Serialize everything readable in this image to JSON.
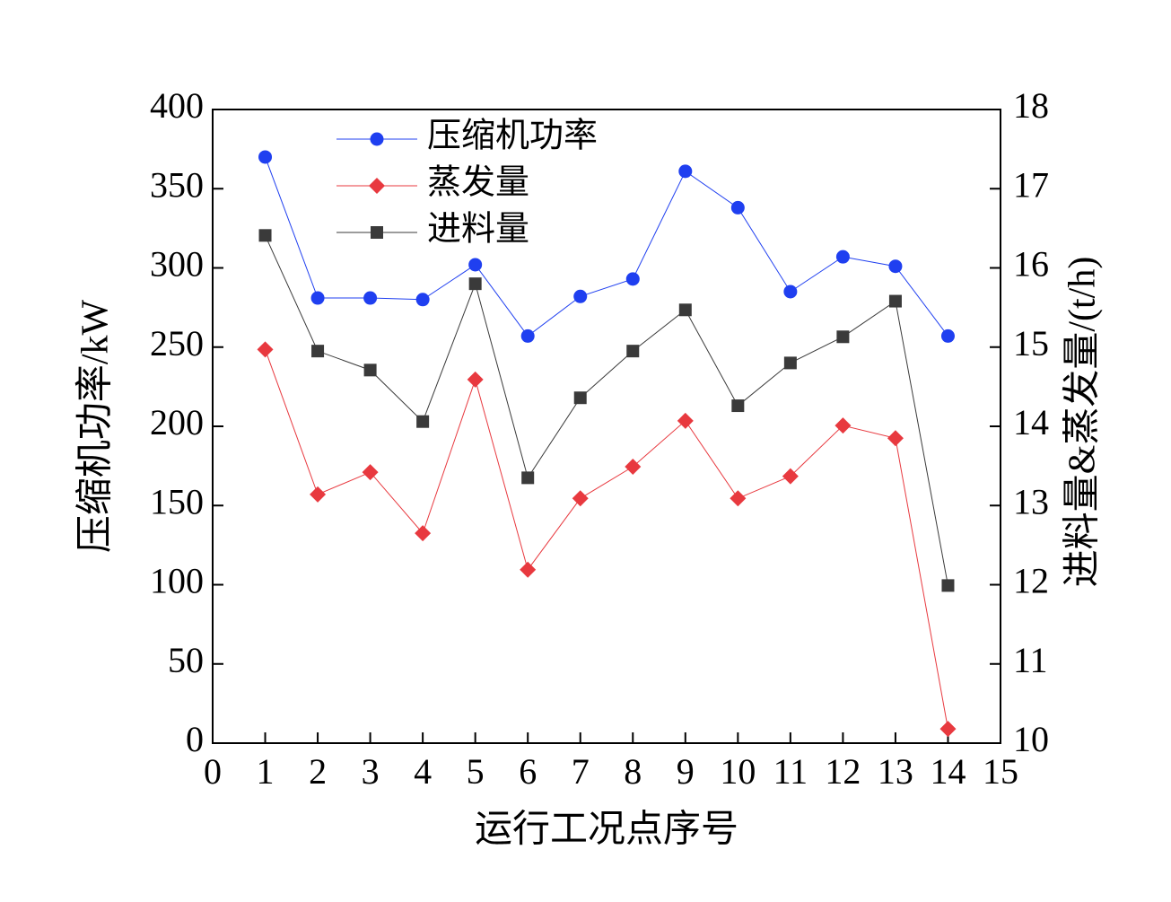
{
  "chart_data": {
    "type": "line",
    "x_label": "运行工况点序号",
    "y_label": "压缩机功率/kW",
    "y2_label": "进料量&蒸发量/(t/h)",
    "x": [
      1,
      2,
      3,
      4,
      5,
      6,
      7,
      8,
      9,
      10,
      11,
      12,
      13,
      14
    ],
    "xlim": [
      0,
      15
    ],
    "xticks": [
      0,
      1,
      2,
      3,
      4,
      5,
      6,
      7,
      8,
      9,
      10,
      11,
      12,
      13,
      14,
      15
    ],
    "ylim": [
      0,
      400
    ],
    "yticks": [
      0,
      50,
      100,
      150,
      200,
      250,
      300,
      350,
      400
    ],
    "y2lim": [
      10,
      18
    ],
    "y2ticks": [
      10,
      11,
      12,
      13,
      14,
      15,
      16,
      17,
      18
    ],
    "legend": "top-left",
    "series": [
      {
        "name": "压缩机功率",
        "color": "#1f3ff0",
        "marker": "circle",
        "values": [
          370,
          281,
          281,
          280,
          302,
          257,
          282,
          293,
          361,
          338,
          285,
          307,
          301,
          257
        ]
      },
      {
        "name": "蒸发量",
        "color": "#e8393f",
        "marker": "diamond",
        "axis": "y2",
        "values": [
          14.97,
          13.14,
          13.42,
          12.65,
          14.59,
          12.19,
          13.09,
          13.49,
          14.07,
          13.09,
          13.37,
          14.01,
          13.85,
          10.18
        ]
      },
      {
        "name": "进料量",
        "color": "#3a3a3a",
        "marker": "square",
        "axis": "y2",
        "values": [
          16.41,
          14.95,
          14.71,
          14.06,
          15.8,
          13.35,
          14.36,
          14.95,
          15.47,
          14.26,
          14.8,
          15.13,
          15.58,
          11.99
        ]
      }
    ]
  }
}
